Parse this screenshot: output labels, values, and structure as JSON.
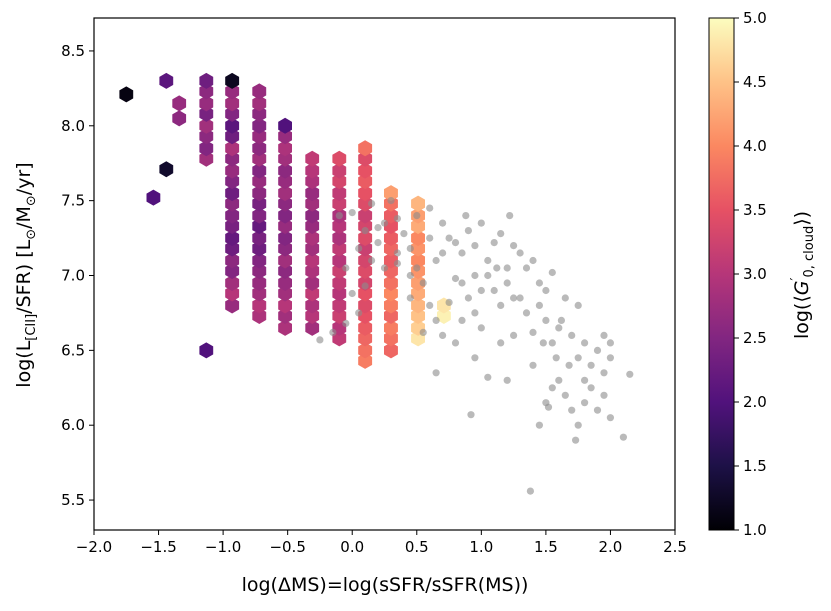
{
  "chart_data": {
    "type": "scatter",
    "title": "",
    "xlabel": "log(ΔMS)=log(sSFR/sSFR(MS))",
    "ylabel_parts": {
      "a": "log(L",
      "sub": "[CII]",
      "b": "/SFR) [L",
      "sun": "⊙",
      "c": "/M",
      "d": "/yr]"
    },
    "xlim": [
      -2.0,
      2.5
    ],
    "ylim": [
      5.3,
      8.72
    ],
    "x_ticks": [
      "−2.0",
      "−1.5",
      "−1.0",
      "−0.5",
      "0.0",
      "0.5",
      "1.0",
      "1.5",
      "2.0",
      "2.5"
    ],
    "x_tick_values": [
      -2.0,
      -1.5,
      -1.0,
      -0.5,
      0.0,
      0.5,
      1.0,
      1.5,
      2.0,
      2.5
    ],
    "y_ticks": [
      "5.5",
      "6.0",
      "6.5",
      "7.0",
      "7.5",
      "8.0",
      "8.5"
    ],
    "y_tick_values": [
      5.5,
      6.0,
      6.5,
      7.0,
      7.5,
      8.0,
      8.5
    ],
    "colorbar": {
      "label_parts": {
        "a": "log(⟨",
        "g": "G",
        "sup": "′",
        "sub": "0, cloud",
        "b": "⟩)"
      },
      "range": [
        1.0,
        5.0
      ],
      "ticks": [
        "1.0",
        "1.5",
        "2.0",
        "2.5",
        "3.0",
        "3.5",
        "4.0",
        "4.5",
        "5.0"
      ],
      "tick_values": [
        1.0,
        1.5,
        2.0,
        2.5,
        3.0,
        3.5,
        4.0,
        4.5,
        5.0
      ],
      "colormap": "magma"
    },
    "hexbin": {
      "gridsize_dx": 0.103,
      "gridsize_dy": 0.075,
      "columns": [
        {
          "x": -1.75,
          "ys": [
            8.21
          ],
          "cs": [
            1.1
          ]
        },
        {
          "x": -1.54,
          "ys": [
            7.52
          ],
          "cs": [
            2.0
          ]
        },
        {
          "x": -1.44,
          "ys": [
            7.71,
            8.3
          ],
          "cs": [
            1.3,
            2.1
          ]
        },
        {
          "x": -1.34,
          "ys": [
            8.05,
            8.15
          ],
          "cs": [
            2.6,
            2.7
          ]
        },
        {
          "x": -1.13,
          "ys": [
            6.5,
            7.78,
            7.85,
            7.93,
            8.0,
            8.08,
            8.15,
            8.23,
            8.3
          ],
          "cs": [
            2.0,
            2.8,
            2.5,
            2.6,
            2.8,
            2.4,
            2.7,
            2.6,
            2.3
          ]
        },
        {
          "x": -0.93,
          "ys": [
            6.8,
            6.88,
            6.95,
            7.03,
            7.1,
            7.18,
            7.25,
            7.33,
            7.4,
            7.48,
            7.55,
            7.63,
            7.7,
            7.78,
            7.85,
            7.93,
            8.0,
            8.08,
            8.15,
            8.23,
            8.3
          ],
          "cs": [
            2.7,
            3.0,
            2.8,
            2.5,
            2.6,
            2.3,
            2.2,
            2.4,
            2.5,
            2.6,
            2.3,
            2.5,
            2.7,
            2.6,
            2.9,
            2.3,
            2.1,
            2.5,
            2.8,
            2.7,
            1.2
          ]
        },
        {
          "x": -0.72,
          "ys": [
            6.73,
            6.8,
            6.88,
            6.95,
            7.03,
            7.1,
            7.18,
            7.25,
            7.33,
            7.4,
            7.48,
            7.55,
            7.63,
            7.7,
            7.78,
            7.85,
            7.93,
            8.0,
            8.08,
            8.15,
            8.23
          ],
          "cs": [
            2.9,
            3.0,
            2.8,
            2.7,
            2.6,
            2.5,
            2.3,
            2.4,
            2.2,
            2.5,
            2.4,
            2.6,
            2.7,
            2.5,
            2.8,
            2.6,
            2.7,
            2.5,
            2.6,
            2.8,
            2.7
          ]
        },
        {
          "x": -0.52,
          "ys": [
            6.65,
            6.73,
            6.8,
            6.88,
            6.95,
            7.03,
            7.1,
            7.18,
            7.25,
            7.33,
            7.4,
            7.48,
            7.55,
            7.63,
            7.7,
            7.78,
            7.85,
            7.93,
            8.0
          ],
          "cs": [
            2.9,
            2.8,
            3.0,
            2.8,
            2.7,
            2.6,
            2.8,
            2.6,
            2.5,
            2.7,
            2.5,
            2.6,
            2.8,
            2.7,
            2.6,
            2.8,
            2.9,
            2.7,
            2.0
          ]
        },
        {
          "x": -0.31,
          "ys": [
            6.65,
            6.73,
            6.8,
            6.88,
            6.95,
            7.03,
            7.1,
            7.18,
            7.25,
            7.33,
            7.4,
            7.48,
            7.55,
            7.63,
            7.7,
            7.78
          ],
          "cs": [
            2.8,
            3.0,
            2.9,
            3.1,
            2.8,
            2.9,
            3.0,
            2.8,
            2.9,
            2.7,
            2.6,
            2.8,
            2.7,
            2.9,
            3.0,
            3.1
          ]
        },
        {
          "x": -0.1,
          "ys": [
            6.58,
            6.65,
            6.73,
            6.8,
            6.88,
            6.95,
            7.03,
            7.1,
            7.18,
            7.25,
            7.33,
            7.4,
            7.48,
            7.55,
            7.63,
            7.7,
            7.78
          ],
          "cs": [
            3.1,
            3.0,
            3.2,
            3.1,
            3.0,
            3.1,
            3.2,
            3.0,
            3.1,
            2.9,
            3.0,
            2.9,
            3.2,
            3.1,
            3.3,
            3.2,
            3.4
          ]
        },
        {
          "x": 0.1,
          "ys": [
            6.43,
            6.5,
            6.58,
            6.65,
            6.73,
            6.8,
            6.88,
            6.95,
            7.03,
            7.1,
            7.18,
            7.25,
            7.33,
            7.4,
            7.48,
            7.55,
            7.63,
            7.7,
            7.78,
            7.85
          ],
          "cs": [
            3.9,
            3.8,
            3.7,
            3.6,
            3.5,
            3.4,
            3.5,
            3.3,
            3.4,
            3.3,
            3.2,
            3.4,
            3.3,
            3.2,
            3.4,
            3.5,
            3.6,
            3.5,
            3.4,
            3.8
          ]
        },
        {
          "x": 0.3,
          "ys": [
            6.5,
            6.58,
            6.65,
            6.73,
            6.8,
            6.88,
            6.95,
            7.03,
            7.1,
            7.18,
            7.25,
            7.33,
            7.4,
            7.48,
            7.55
          ],
          "cs": [
            3.7,
            3.8,
            3.9,
            3.7,
            3.9,
            4.0,
            3.8,
            3.7,
            3.6,
            3.7,
            3.6,
            3.5,
            3.6,
            3.8,
            4.2
          ]
        },
        {
          "x": 0.51,
          "ys": [
            6.58,
            6.65,
            6.73,
            6.8,
            6.88,
            6.95,
            7.03,
            7.1,
            7.18,
            7.25,
            7.33,
            7.4,
            7.48
          ],
          "cs": [
            4.8,
            4.6,
            4.5,
            4.4,
            4.3,
            4.2,
            4.1,
            4.0,
            4.1,
            4.0,
            4.3,
            4.2,
            4.4
          ]
        },
        {
          "x": 0.71,
          "ys": [
            6.73,
            6.8
          ],
          "cs": [
            4.9,
            4.8
          ]
        }
      ]
    },
    "gray_points": [
      [
        -0.25,
        6.57
      ],
      [
        -0.15,
        6.62
      ],
      [
        -0.05,
        6.68
      ],
      [
        0.05,
        6.75
      ],
      [
        0.0,
        6.88
      ],
      [
        0.1,
        6.93
      ],
      [
        -0.05,
        7.05
      ],
      [
        0.15,
        7.1
      ],
      [
        0.05,
        7.18
      ],
      [
        0.2,
        7.22
      ],
      [
        0.1,
        7.3
      ],
      [
        0.25,
        7.35
      ],
      [
        0.0,
        7.42
      ],
      [
        0.15,
        7.48
      ],
      [
        0.3,
        7.5
      ],
      [
        0.35,
        7.38
      ],
      [
        0.4,
        7.28
      ],
      [
        0.45,
        7.18
      ],
      [
        0.35,
        7.08
      ],
      [
        0.5,
        7.05
      ],
      [
        0.55,
        6.95
      ],
      [
        0.45,
        6.85
      ],
      [
        0.6,
        6.8
      ],
      [
        0.65,
        6.7
      ],
      [
        0.55,
        6.62
      ],
      [
        0.7,
        6.6
      ],
      [
        0.8,
        6.55
      ],
      [
        0.65,
        7.1
      ],
      [
        0.75,
        7.25
      ],
      [
        0.7,
        7.35
      ],
      [
        0.8,
        7.22
      ],
      [
        0.85,
        7.15
      ],
      [
        0.9,
        7.3
      ],
      [
        0.95,
        7.2
      ],
      [
        1.0,
        7.35
      ],
      [
        1.05,
        7.1
      ],
      [
        1.1,
        7.22
      ],
      [
        1.15,
        7.28
      ],
      [
        1.2,
        7.05
      ],
      [
        1.25,
        7.2
      ],
      [
        0.85,
        6.95
      ],
      [
        0.9,
        6.85
      ],
      [
        0.95,
        6.75
      ],
      [
        1.0,
        6.9
      ],
      [
        1.05,
        7.0
      ],
      [
        1.1,
        6.9
      ],
      [
        1.15,
        6.8
      ],
      [
        1.2,
        6.95
      ],
      [
        1.3,
        7.15
      ],
      [
        1.35,
        7.05
      ],
      [
        1.4,
        7.1
      ],
      [
        1.45,
        6.95
      ],
      [
        1.5,
        6.9
      ],
      [
        1.55,
        7.02
      ],
      [
        1.3,
        6.85
      ],
      [
        1.35,
        6.75
      ],
      [
        1.25,
        6.6
      ],
      [
        1.4,
        6.62
      ],
      [
        1.45,
        6.8
      ],
      [
        1.5,
        6.7
      ],
      [
        1.55,
        6.55
      ],
      [
        1.6,
        6.65
      ],
      [
        1.65,
        6.85
      ],
      [
        1.7,
        6.6
      ],
      [
        1.75,
        6.45
      ],
      [
        1.8,
        6.55
      ],
      [
        1.85,
        6.4
      ],
      [
        1.9,
        6.5
      ],
      [
        1.95,
        6.35
      ],
      [
        2.0,
        6.45
      ],
      [
        1.6,
        6.3
      ],
      [
        1.65,
        6.2
      ],
      [
        1.7,
        6.1
      ],
      [
        1.75,
        6.0
      ],
      [
        1.8,
        6.15
      ],
      [
        1.85,
        6.25
      ],
      [
        1.9,
        6.1
      ],
      [
        1.95,
        6.2
      ],
      [
        2.0,
        6.05
      ],
      [
        1.5,
        6.15
      ],
      [
        1.45,
        6.0
      ],
      [
        1.55,
        6.25
      ],
      [
        1.05,
        6.32
      ],
      [
        1.2,
        6.3
      ],
      [
        0.95,
        6.45
      ],
      [
        0.65,
        6.35
      ],
      [
        0.92,
        6.07
      ],
      [
        1.38,
        5.56
      ],
      [
        1.73,
        5.9
      ],
      [
        2.1,
        5.92
      ],
      [
        2.15,
        6.34
      ],
      [
        1.95,
        6.6
      ],
      [
        2.0,
        6.55
      ],
      [
        1.4,
        6.4
      ],
      [
        1.25,
        6.85
      ],
      [
        0.8,
        6.98
      ],
      [
        0.6,
        7.25
      ],
      [
        0.35,
        7.15
      ],
      [
        0.25,
        7.05
      ],
      [
        0.5,
        7.4
      ],
      [
        0.6,
        7.45
      ],
      [
        -0.1,
        7.4
      ],
      [
        0.2,
        7.32
      ],
      [
        0.45,
        7.0
      ],
      [
        1.62,
        6.7
      ],
      [
        1.8,
        6.3
      ],
      [
        1.75,
        6.8
      ],
      [
        1.68,
        6.4
      ],
      [
        1.58,
        6.45
      ],
      [
        1.52,
        6.12
      ],
      [
        1.48,
        6.55
      ],
      [
        1.15,
        6.55
      ],
      [
        1.0,
        6.65
      ],
      [
        0.85,
        6.7
      ],
      [
        0.75,
        6.82
      ],
      [
        0.95,
        7.0
      ],
      [
        1.12,
        7.05
      ],
      [
        1.22,
        7.4
      ],
      [
        0.88,
        7.4
      ],
      [
        0.7,
        7.15
      ]
    ]
  }
}
